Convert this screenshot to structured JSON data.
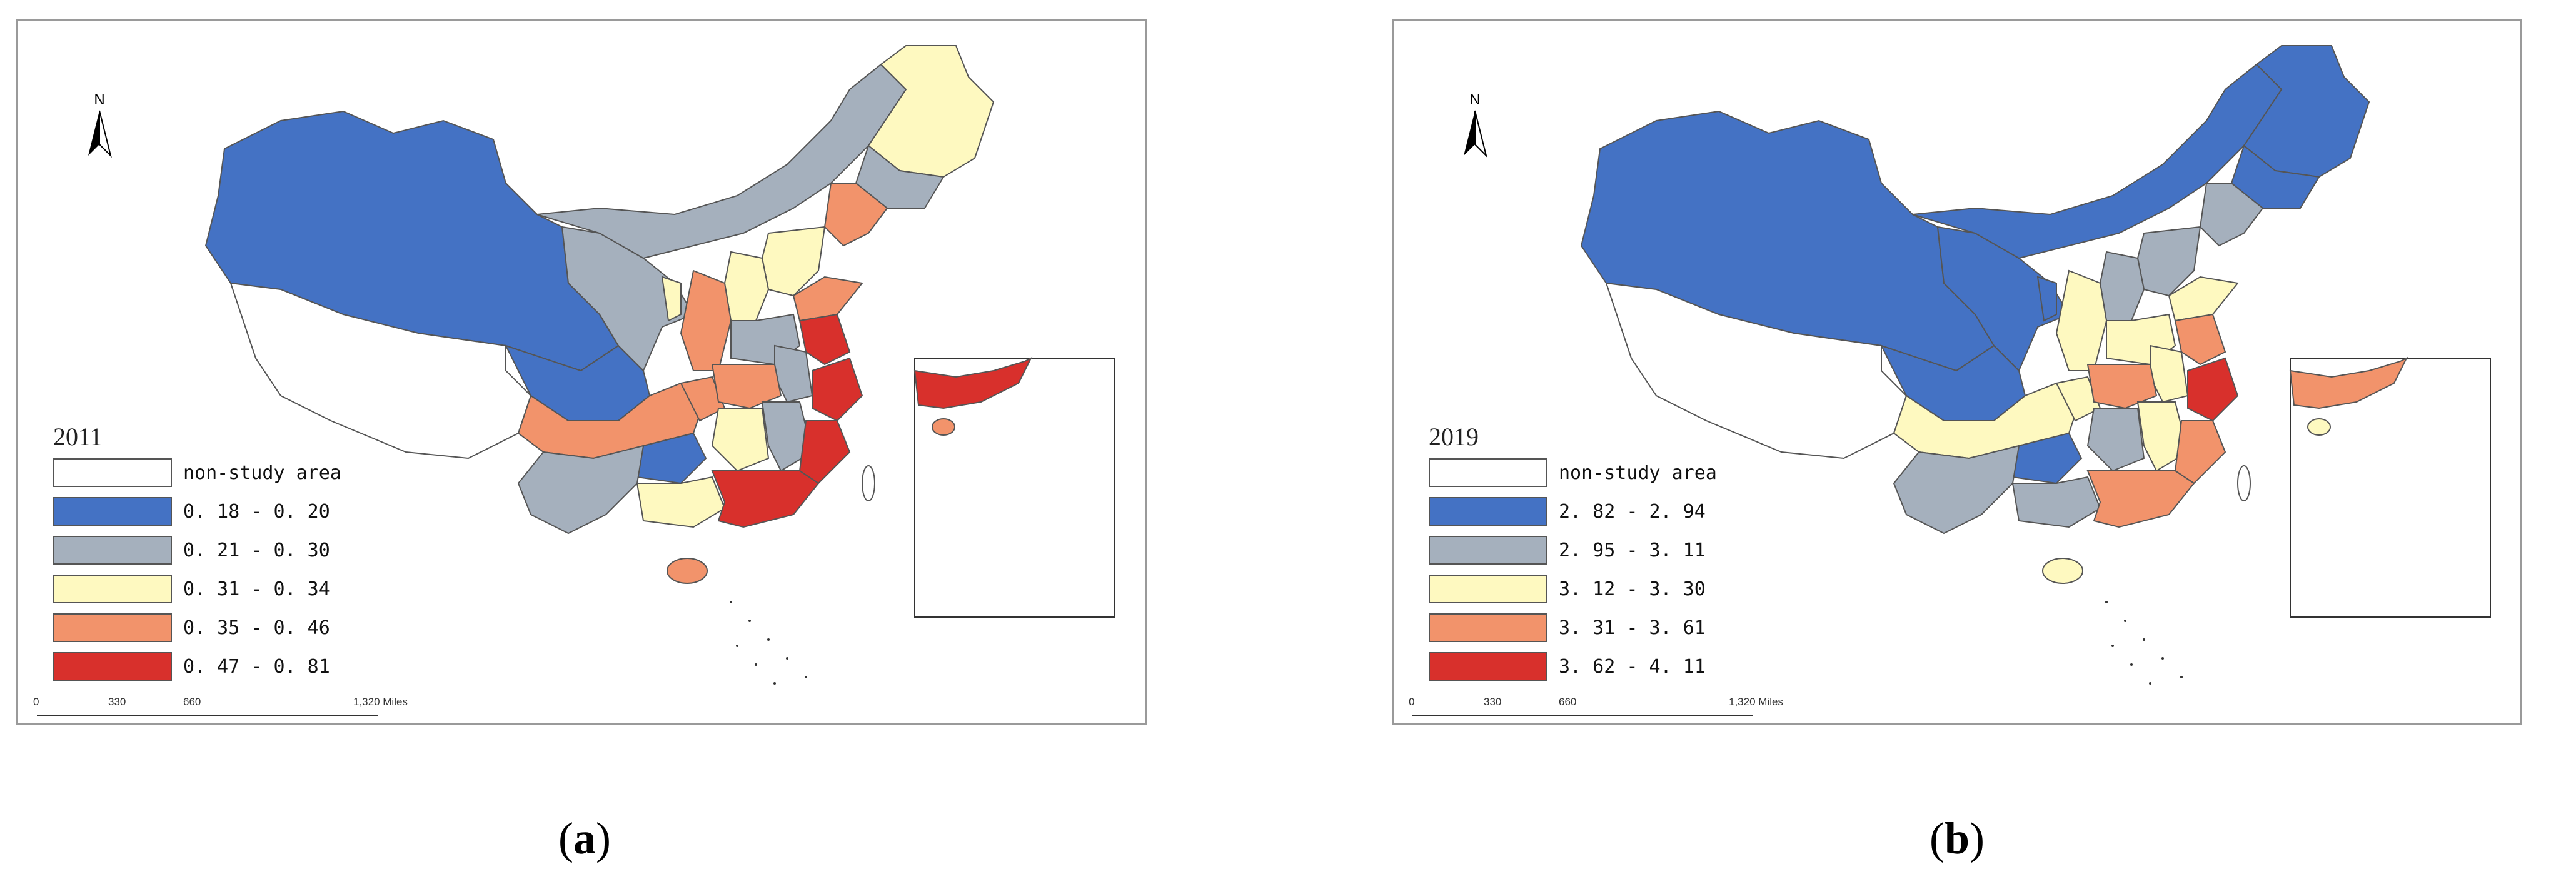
{
  "colors": {
    "non_study": "#ffffff",
    "class1": "#4472c4",
    "class2": "#a5b0bd",
    "class3": "#fef9c0",
    "class4": "#f2936b",
    "class5": "#d8302c",
    "border": "#555555"
  },
  "north_label": "N",
  "panels": [
    {
      "caption_open": "(",
      "caption_letter": "a",
      "caption_close": ")",
      "year": "2011",
      "legend": [
        {
          "label": "non-study area",
          "color": "#ffffff"
        },
        {
          "label": "0. 18 - 0. 20",
          "color": "#4472c4"
        },
        {
          "label": "0. 21 - 0. 30",
          "color": "#a5b0bd"
        },
        {
          "label": "0. 31 - 0. 34",
          "color": "#fef9c0"
        },
        {
          "label": "0. 35 - 0. 46",
          "color": "#f2936b"
        },
        {
          "label": "0. 47 - 0. 81",
          "color": "#d8302c"
        }
      ],
      "scale_labels": [
        "0",
        "330",
        "660",
        "1,320 Miles"
      ]
    },
    {
      "caption_open": "(",
      "caption_letter": "b",
      "caption_close": ")",
      "year": "2019",
      "legend": [
        {
          "label": "non-study area",
          "color": "#ffffff"
        },
        {
          "label": "2. 82 - 2. 94",
          "color": "#4472c4"
        },
        {
          "label": "2. 95 - 3. 11",
          "color": "#a5b0bd"
        },
        {
          "label": "3. 12 - 3. 30",
          "color": "#fef9c0"
        },
        {
          "label": "3. 31 - 3. 61",
          "color": "#f2936b"
        },
        {
          "label": "3. 62 - 4. 11",
          "color": "#d8302c"
        }
      ],
      "scale_labels": [
        "0",
        "330",
        "660",
        "1,320 Miles"
      ]
    }
  ]
}
